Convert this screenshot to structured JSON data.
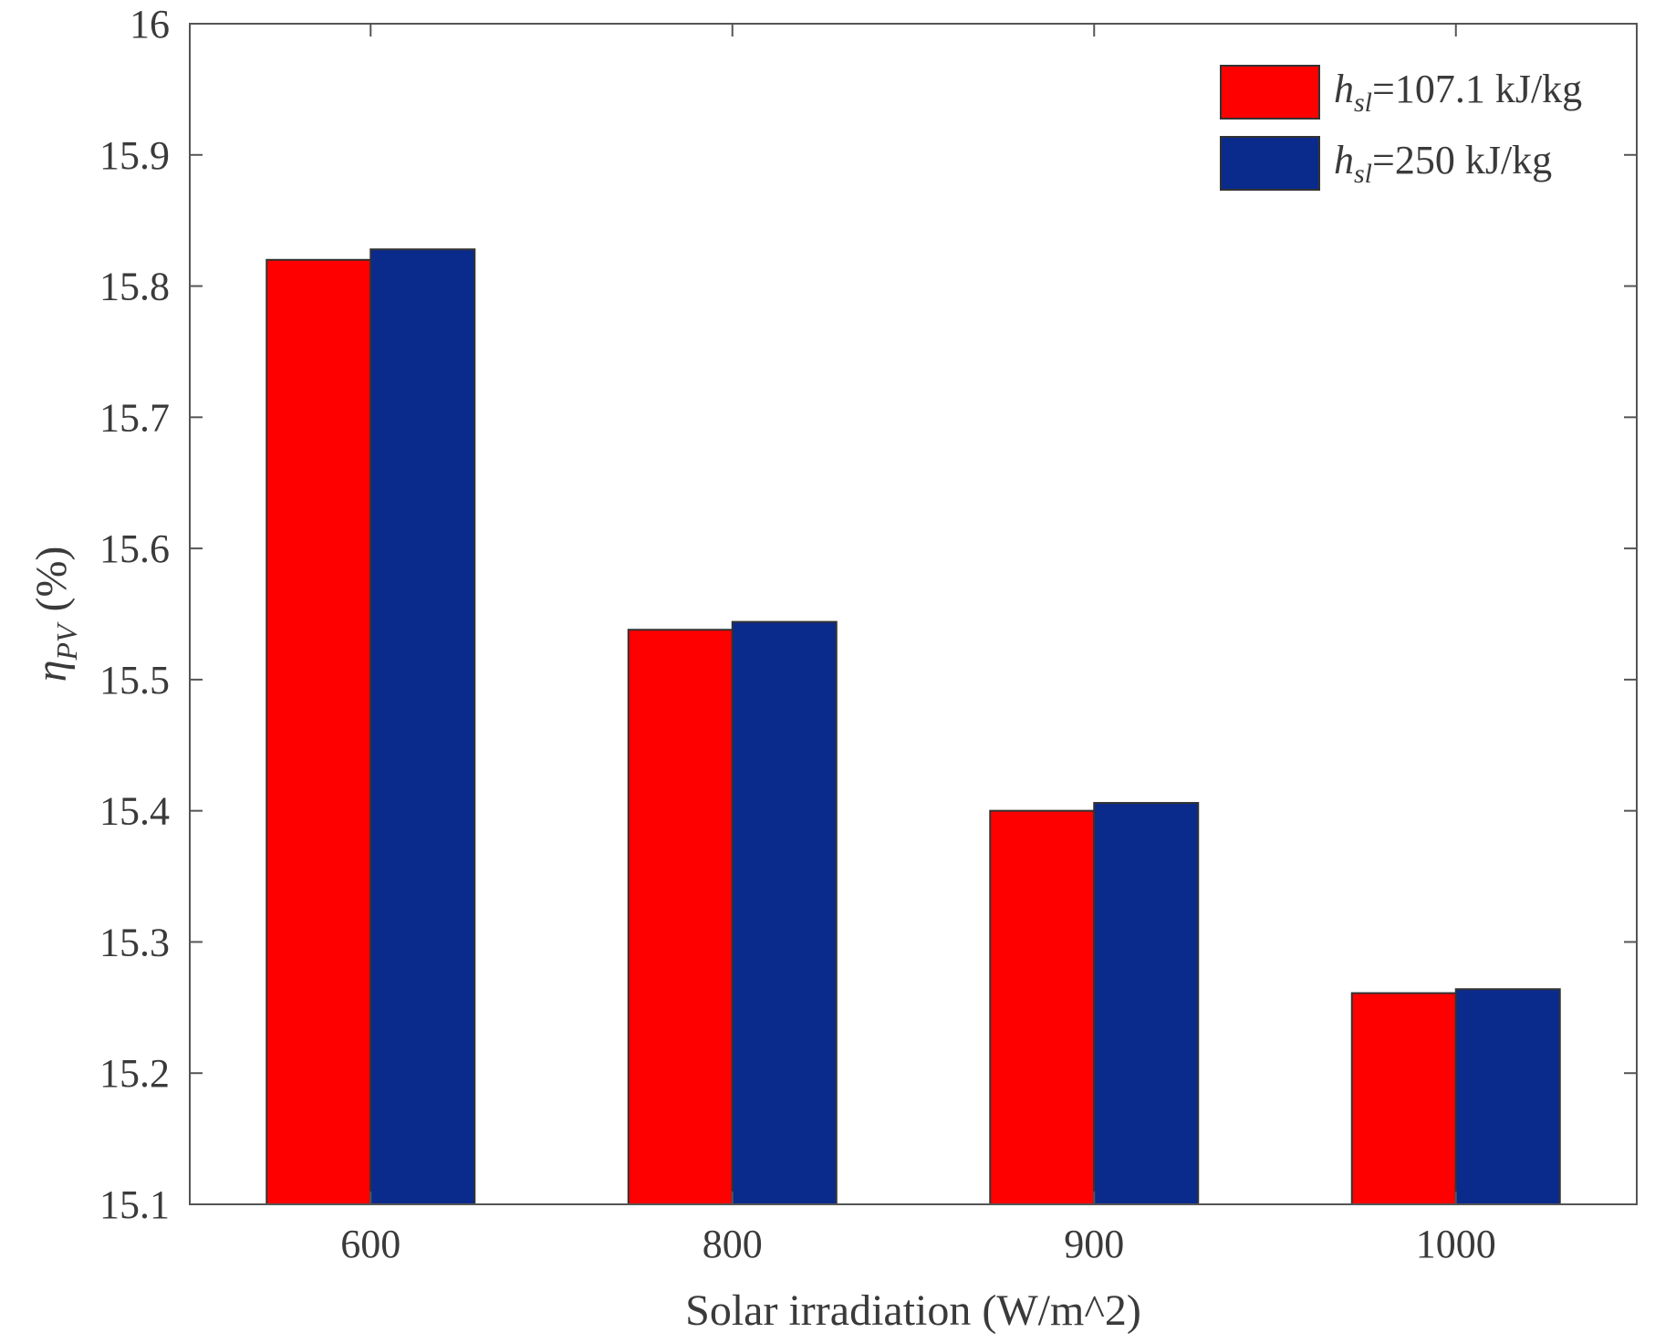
{
  "chart_data": {
    "type": "bar",
    "title": "",
    "xlabel": "Solar irradiation (W/m^2)",
    "ylabel": {
      "symbol": "η",
      "subscript": "PV",
      "unit": "(%)"
    },
    "categories": [
      "600",
      "800",
      "900",
      "1000"
    ],
    "ylim": [
      15.1,
      16.0
    ],
    "yticks": [
      "15.1",
      "15.2",
      "15.3",
      "15.4",
      "15.5",
      "15.6",
      "15.7",
      "15.8",
      "15.9",
      "16"
    ],
    "grid": false,
    "legend_position": "top-right",
    "series": [
      {
        "name": "h_sl=107.1 kJ/kg",
        "label_main": "h",
        "label_sub": "sl",
        "label_rest": "=107.1 kJ/kg",
        "color": "#ff0000",
        "values": [
          15.82,
          15.538,
          15.4,
          15.261
        ]
      },
      {
        "name": "h_sl=250 kJ/kg",
        "label_main": "h",
        "label_sub": "sl",
        "label_rest": "=250 kJ/kg",
        "color": "#0a2a8c",
        "values": [
          15.828,
          15.544,
          15.406,
          15.264
        ]
      }
    ]
  }
}
